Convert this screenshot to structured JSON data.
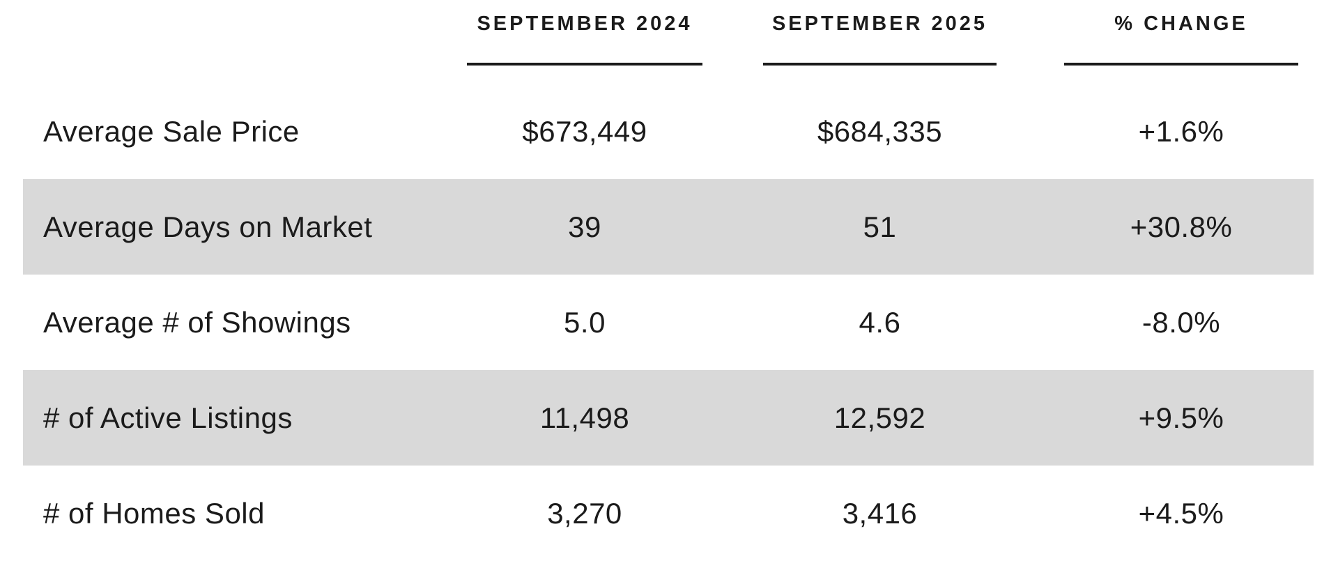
{
  "chart_data": {
    "type": "table",
    "columns": [
      "SEPTEMBER 2024",
      "SEPTEMBER 2025",
      "% CHANGE"
    ],
    "rows": [
      {
        "label": "Average Sale Price",
        "values": [
          "$673,449",
          "$684,335",
          "+1.6%"
        ],
        "shaded": false
      },
      {
        "label": "Average Days on Market",
        "values": [
          "39",
          "51",
          "+30.8%"
        ],
        "shaded": true
      },
      {
        "label": "Average # of Showings",
        "values": [
          "5.0",
          "4.6",
          "-8.0%"
        ],
        "shaded": false
      },
      {
        "label": "# of Active Listings",
        "values": [
          "11,498",
          "12,592",
          "+9.5%"
        ],
        "shaded": true
      },
      {
        "label": "# of Homes Sold",
        "values": [
          "3,270",
          "3,416",
          "+4.5%"
        ],
        "shaded": false
      }
    ],
    "layout": {
      "legend": "none",
      "grid": "off",
      "shading": "alternate rows 2 and 4"
    },
    "colors": {
      "background": "#ffffff",
      "row_shade": "#d9d9d9",
      "text": "#1b1b1b",
      "header_underline": "#1b1b1b"
    }
  }
}
